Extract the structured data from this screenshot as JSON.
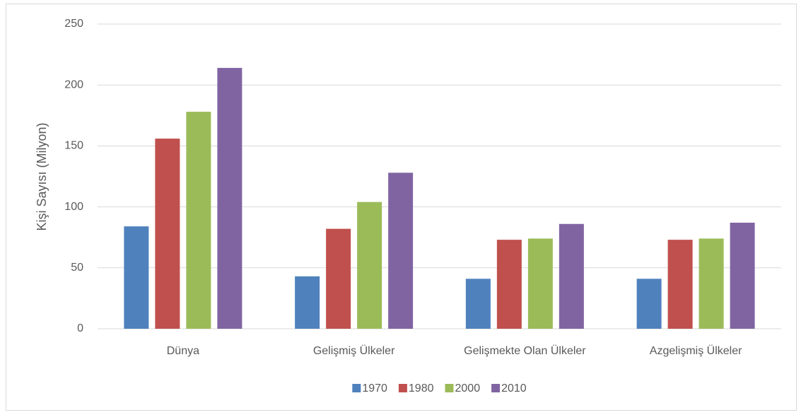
{
  "chart_data": {
    "type": "bar",
    "y_label": "Kişi Sayısı (Milyon)",
    "categories": [
      "Dünya",
      "Gelişmiş Ülkeler",
      "Gelişmekte Olan Ülkeler",
      "Azgelişmiş Ülkeler"
    ],
    "series": [
      {
        "name": "1970",
        "color": "#4f81bd",
        "values": [
          84,
          43,
          41,
          41
        ]
      },
      {
        "name": "1980",
        "color": "#c0504d",
        "values": [
          156,
          82,
          73,
          73
        ]
      },
      {
        "name": "2000",
        "color": "#9bbb59",
        "values": [
          178,
          104,
          74,
          74
        ]
      },
      {
        "name": "2010",
        "color": "#8064a2",
        "values": [
          214,
          128,
          86,
          87
        ]
      }
    ],
    "ylim": [
      0,
      250
    ],
    "yticks": [
      0,
      50,
      100,
      150,
      200,
      250
    ],
    "grid": true,
    "legend": "bottom"
  }
}
